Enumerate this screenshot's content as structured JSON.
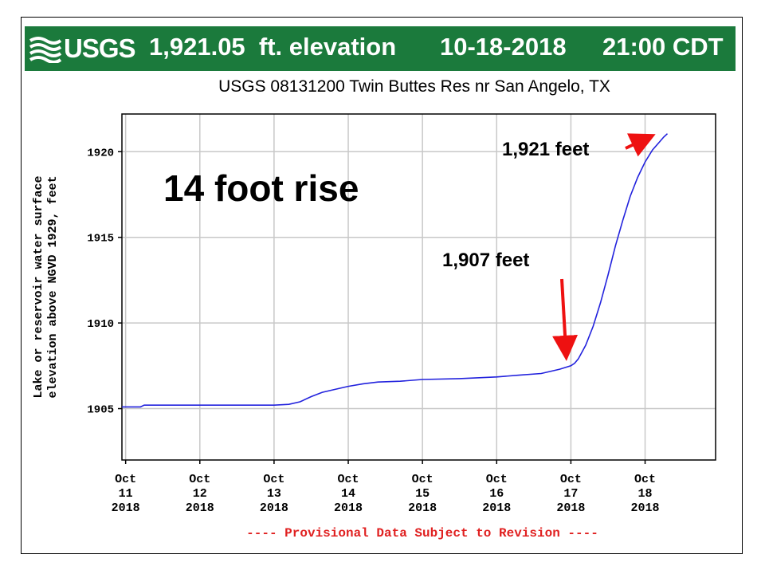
{
  "banner": {
    "logo_text": "USGS",
    "logo_icon": "usgs-wave-icon",
    "elevation": "1,921.05  ft. elevation",
    "date": "10-18-2018",
    "time": "21:00 CDT",
    "color": "#1b7a3c"
  },
  "chart_data": {
    "type": "line",
    "title": "USGS 08131200 Twin Buttes Res nr San Angelo, TX",
    "xlabel": "",
    "ylabel_line1": "Lake or reservoir water surface",
    "ylabel_line2": "elevation above NGVD 1929, feet",
    "ylim": [
      1902,
      1922.2
    ],
    "xlim": [
      10.95,
      18.95
    ],
    "yticks": [
      1905,
      1910,
      1915,
      1920
    ],
    "ytick_labels": [
      "1905",
      "1910",
      "1915",
      "1920"
    ],
    "xticks": [
      {
        "value": 11,
        "label": [
          "Oct",
          "11",
          "2018"
        ]
      },
      {
        "value": 12,
        "label": [
          "Oct",
          "12",
          "2018"
        ]
      },
      {
        "value": 13,
        "label": [
          "Oct",
          "13",
          "2018"
        ]
      },
      {
        "value": 14,
        "label": [
          "Oct",
          "14",
          "2018"
        ]
      },
      {
        "value": 15,
        "label": [
          "Oct",
          "15",
          "2018"
        ]
      },
      {
        "value": 16,
        "label": [
          "Oct",
          "16",
          "2018"
        ]
      },
      {
        "value": 17,
        "label": [
          "Oct",
          "17",
          "2018"
        ]
      },
      {
        "value": 18,
        "label": [
          "Oct",
          "18",
          "2018"
        ]
      }
    ],
    "grid": true,
    "series": [
      {
        "color": "#2222dd",
        "points": [
          [
            10.95,
            1905.1
          ],
          [
            11.2,
            1905.1
          ],
          [
            11.25,
            1905.2
          ],
          [
            11.5,
            1905.2
          ],
          [
            12.0,
            1905.2
          ],
          [
            12.5,
            1905.2
          ],
          [
            13.0,
            1905.2
          ],
          [
            13.2,
            1905.25
          ],
          [
            13.35,
            1905.4
          ],
          [
            13.5,
            1905.7
          ],
          [
            13.65,
            1905.95
          ],
          [
            13.8,
            1906.1
          ],
          [
            14.0,
            1906.3
          ],
          [
            14.2,
            1906.45
          ],
          [
            14.4,
            1906.55
          ],
          [
            14.7,
            1906.6
          ],
          [
            15.0,
            1906.7
          ],
          [
            15.5,
            1906.75
          ],
          [
            16.0,
            1906.85
          ],
          [
            16.3,
            1906.95
          ],
          [
            16.6,
            1907.05
          ],
          [
            16.85,
            1907.3
          ],
          [
            17.0,
            1907.5
          ],
          [
            17.05,
            1907.65
          ],
          [
            17.1,
            1907.9
          ],
          [
            17.2,
            1908.7
          ],
          [
            17.3,
            1909.8
          ],
          [
            17.4,
            1911.2
          ],
          [
            17.5,
            1912.8
          ],
          [
            17.6,
            1914.5
          ],
          [
            17.7,
            1916.0
          ],
          [
            17.8,
            1917.4
          ],
          [
            17.9,
            1918.5
          ],
          [
            18.0,
            1919.4
          ],
          [
            18.1,
            1920.1
          ],
          [
            18.2,
            1920.6
          ],
          [
            18.25,
            1920.85
          ],
          [
            18.3,
            1921.05
          ]
        ]
      }
    ],
    "annotations": {
      "headline": "14 foot rise",
      "peak_label": "1,921 feet",
      "start_label": "1,907 feet",
      "arrow_color": "#ee1111",
      "start_point": [
        17.0,
        1907.5
      ],
      "peak_point": [
        18.3,
        1921.05
      ]
    },
    "footer": "---- Provisional Data Subject to Revision ----"
  }
}
